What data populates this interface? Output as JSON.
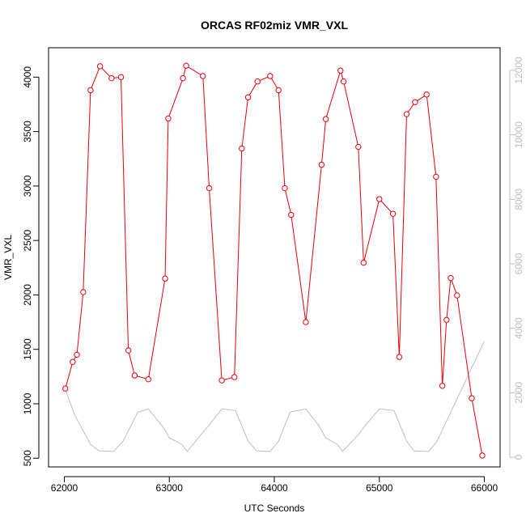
{
  "chart_data": {
    "type": "line",
    "title": "ORCAS RF02miz VMR_VXL",
    "xlabel": "UTC Seconds",
    "ylabel": "VMR_VXL",
    "xlim": [
      61850,
      66150
    ],
    "ylim": [
      420,
      4270
    ],
    "y2lim": [
      -300,
      12700
    ],
    "x_ticks": [
      62000,
      63000,
      64000,
      65000,
      66000
    ],
    "x_tick_labels": [
      "62000",
      "63000",
      "64000",
      "65000",
      "66000"
    ],
    "y_ticks": [
      500,
      1000,
      1500,
      2000,
      2500,
      3000,
      3500,
      4000
    ],
    "y_tick_labels": [
      "500",
      "1000",
      "1500",
      "2000",
      "2500",
      "3000",
      "3500",
      "4000"
    ],
    "y2_ticks": [
      0,
      2000,
      4000,
      6000,
      8000,
      10000,
      12000
    ],
    "y2_tick_labels": [
      "0",
      "2000",
      "4000",
      "6000",
      "8000",
      "10000",
      "12000"
    ],
    "grid": false,
    "series": [
      {
        "axis": "left",
        "color": "#e8000b",
        "markers": "open-circle",
        "x": [
          62010,
          62080,
          62120,
          62180,
          62250,
          62340,
          62450,
          62540,
          62610,
          62670,
          62800,
          62960,
          62990,
          63130,
          63160,
          63320,
          63380,
          63500,
          63620,
          63690,
          63750,
          63840,
          63960,
          64040,
          64100,
          64160,
          64300,
          64450,
          64490,
          64630,
          64660,
          64800,
          64850,
          65000,
          65130,
          65190,
          65260,
          65340,
          65450,
          65540,
          65600,
          65640,
          65680,
          65740,
          65880,
          65980
        ],
        "y": [
          1140,
          1385,
          1450,
          2025,
          3880,
          4100,
          3990,
          4000,
          1490,
          1260,
          1225,
          2150,
          3620,
          3990,
          4105,
          4010,
          2980,
          1215,
          1245,
          3345,
          3815,
          3960,
          4010,
          3880,
          2980,
          2735,
          1750,
          3195,
          3615,
          4060,
          3960,
          3360,
          2295,
          2880,
          2745,
          1430,
          3660,
          3770,
          3840,
          3085,
          1165,
          1770,
          2155,
          1995,
          1050,
          525
        ]
      },
      {
        "axis": "right",
        "color": "#bebebe",
        "markers": "none",
        "x": [
          62010,
          62100,
          62250,
          62330,
          62470,
          62560,
          62700,
          62800,
          62950,
          63000,
          63120,
          63170,
          63300,
          63380,
          63500,
          63630,
          63750,
          63830,
          63960,
          64040,
          64150,
          64300,
          64420,
          64490,
          64600,
          64650,
          64800,
          64870,
          65000,
          65140,
          65260,
          65330,
          65470,
          65550,
          66000
        ],
        "y": [
          2100,
          1300,
          400,
          200,
          180,
          500,
          1400,
          1500,
          900,
          600,
          400,
          180,
          700,
          1000,
          1500,
          1450,
          500,
          200,
          180,
          500,
          1400,
          1500,
          1000,
          600,
          400,
          180,
          700,
          1000,
          1500,
          1450,
          500,
          200,
          180,
          500,
          3600
        ]
      }
    ]
  }
}
